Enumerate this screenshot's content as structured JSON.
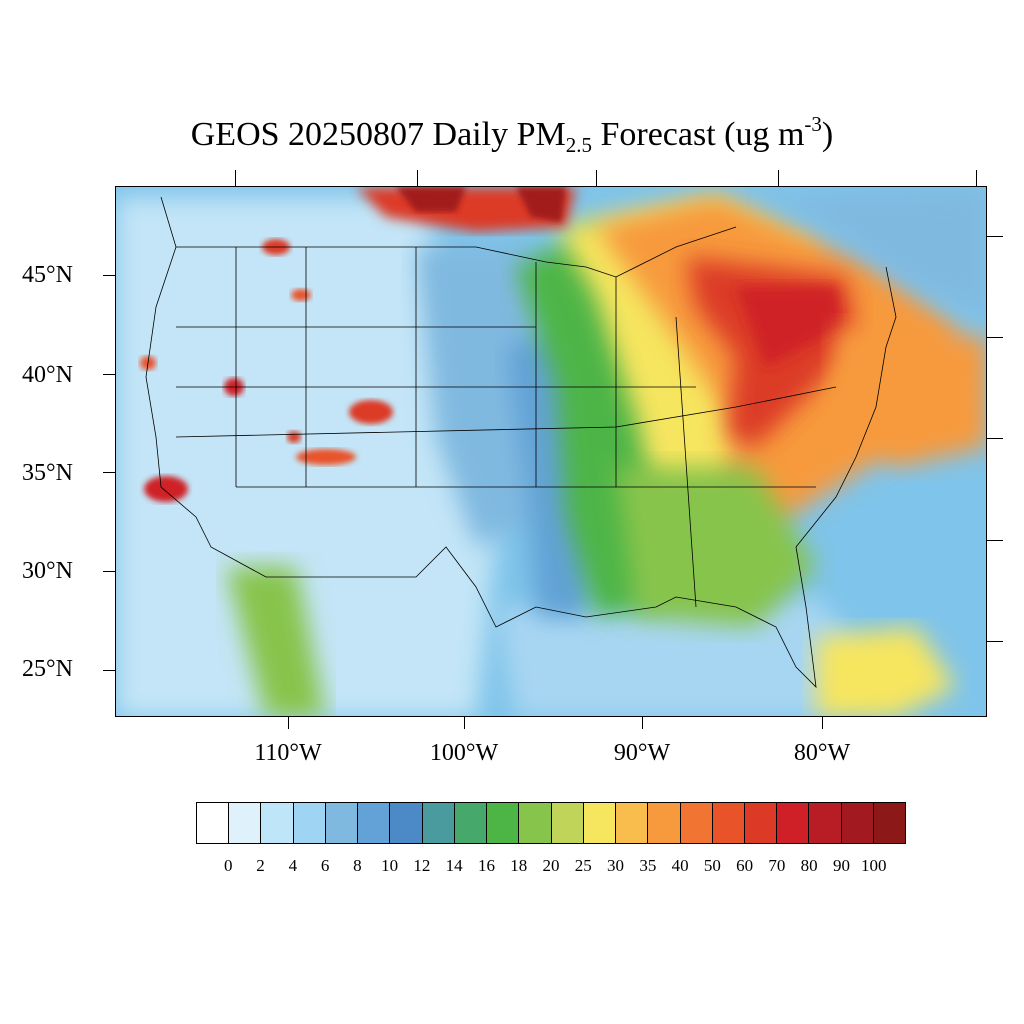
{
  "title": {
    "prefix": "GEOS 20250807 Daily PM",
    "subscript": "2.5",
    "middle": " Forecast (ug m",
    "superscript": "-3",
    "suffix": ")"
  },
  "map": {
    "type": "filled-contour",
    "variable": "PM2.5",
    "lat_labels": [
      "45°N",
      "40°N",
      "35°N",
      "30°N",
      "25°N"
    ],
    "lon_labels": [
      "110°W",
      "100°W",
      "90°W",
      "80°W"
    ],
    "colors": {
      "background_sea": "#7fc4ea",
      "land_clean": "#c3e5f7",
      "boundary_lines": "#000000"
    }
  },
  "colorbar": {
    "levels": [
      "0",
      "2",
      "4",
      "6",
      "8",
      "10",
      "12",
      "14",
      "16",
      "18",
      "20",
      "25",
      "30",
      "35",
      "40",
      "50",
      "60",
      "70",
      "80",
      "90",
      "100"
    ],
    "colors": [
      "#ffffff",
      "#dff2fb",
      "#bfe5f8",
      "#9fd5f3",
      "#80b9e0",
      "#62a2d6",
      "#4b8ac6",
      "#4a9b9e",
      "#46a86a",
      "#4db546",
      "#87c44c",
      "#c0d45a",
      "#f6e55e",
      "#f8bd4c",
      "#f79a3e",
      "#f27432",
      "#e9532a",
      "#dc3a27",
      "#cf2028",
      "#b81c24",
      "#a21a1f",
      "#8c1818"
    ]
  }
}
